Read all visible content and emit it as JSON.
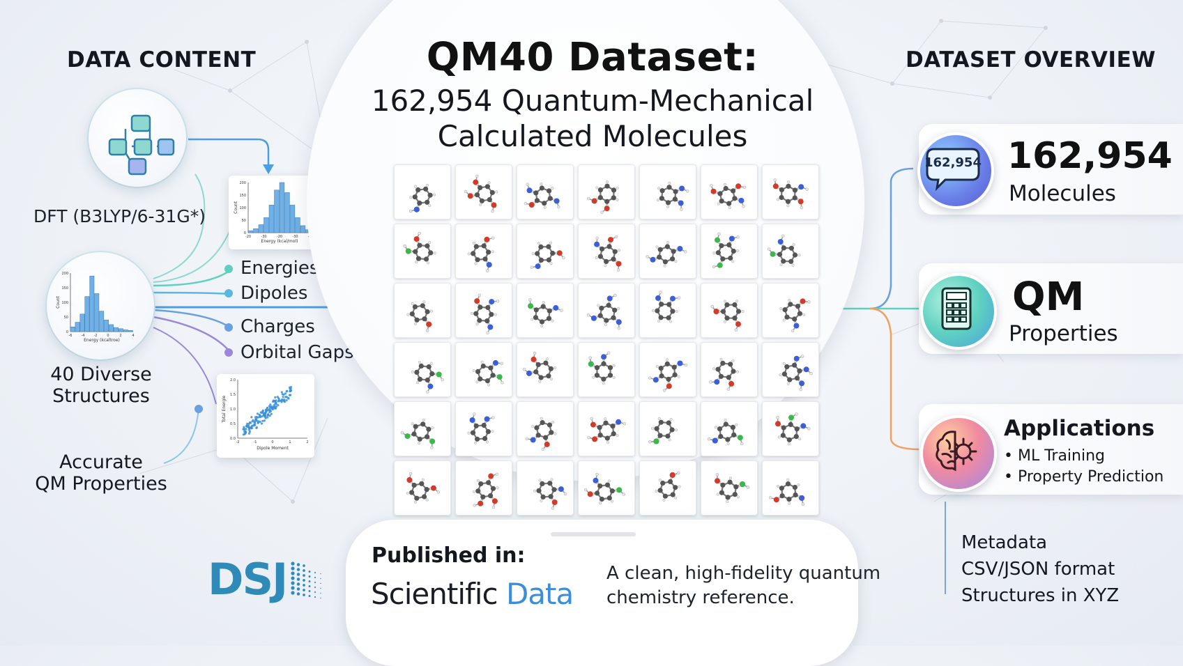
{
  "left": {
    "title": "DATA CONTENT",
    "dft_label": "DFT (B3LYP/6-31G*)",
    "structures_label_1": "40 Diverse",
    "structures_label_2": "Structures",
    "accurate_label_1": "Accurate",
    "accurate_label_2": "QM Properties",
    "properties": [
      "Energies",
      "Dipoles",
      "Charges",
      "Orbital Gaps"
    ],
    "histogram_top": {
      "ylabel": "Count",
      "xlabel": "Energy (kcal/mol)",
      "yticks": [
        "200",
        "150",
        "100",
        "50",
        "0"
      ],
      "xticks": [
        "-20",
        "-30",
        "-20",
        "-30",
        "-20"
      ]
    },
    "histogram_left": {
      "ylabel": "Count",
      "xlabel": "Energy (kcaltroe)",
      "yticks": [
        "200",
        "150",
        "100",
        "50",
        "0"
      ],
      "xticks": [
        "-6",
        "-4",
        "-2",
        "0",
        "2",
        "4"
      ]
    },
    "scatter": {
      "ylabel": "Total Energie",
      "xlabel": "Dipole Moment",
      "yticks": [
        "2.0",
        "1.5",
        "1.0",
        "0.5",
        "0.0"
      ],
      "xticks": [
        "-2",
        "-1",
        "0",
        "1",
        "2"
      ]
    }
  },
  "center": {
    "title": "QM40 Dataset:",
    "subtitle_1": "162,954 Quantum-Mechanical",
    "subtitle_2": "Calculated Molecules"
  },
  "right": {
    "title": "DATASET OVERVIEW",
    "molecules_badge": "162,954",
    "molecules_value": "162,954",
    "molecules_label": "Molecules",
    "qm_value": "QM",
    "qm_label": "Properties",
    "applications_title": "Applications",
    "applications_items": [
      "• ML Training",
      "• Property Prediction"
    ],
    "meta_lines": [
      "Metadata",
      "CSV/JSON format",
      "Structures in XYZ"
    ]
  },
  "publication": {
    "heading": "Published in:",
    "journal_part1": "Scientific",
    "journal_part2": "Data",
    "description_1": "A clean, high-fidelity quantum",
    "description_2": "chemistry reference."
  },
  "logo": {
    "text": "DSJ"
  },
  "colors": {
    "accent_blue": "#3a8fd8",
    "teal": "#5fd0c0",
    "orange": "#f0a060",
    "purple": "#9a88d8",
    "histogram_bar": "#6fb0e6"
  }
}
